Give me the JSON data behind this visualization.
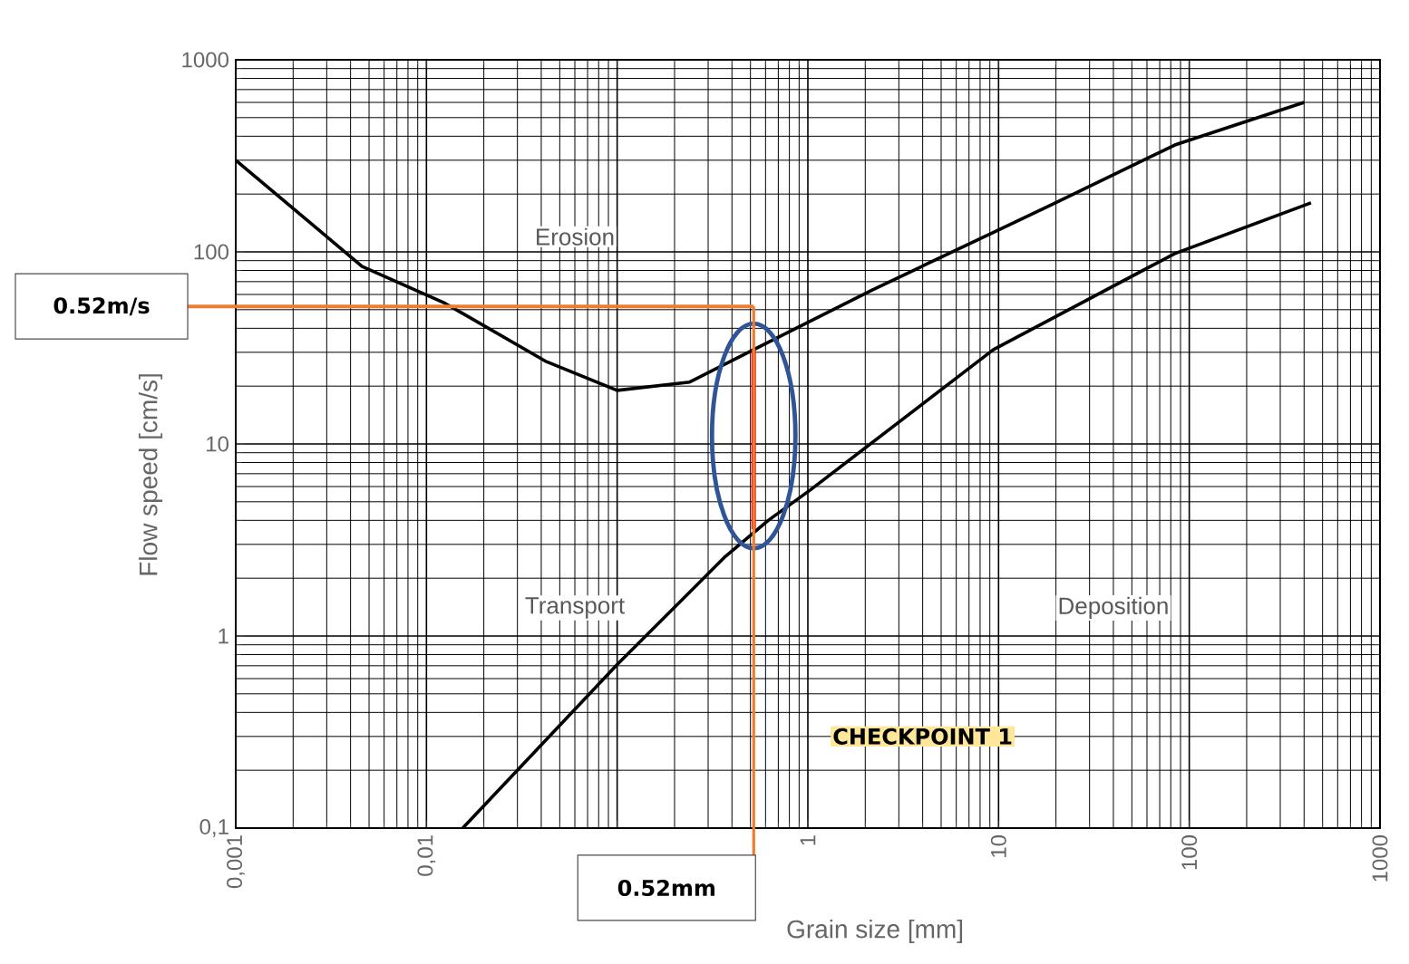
{
  "chart_data": {
    "type": "line",
    "xlabel": "Grain size [mm]",
    "ylabel": "Flow speed [cm/s]",
    "log": "xy",
    "grid": true,
    "marker": "none",
    "line_style": "solid",
    "xlim": [
      0.001,
      1000
    ],
    "ylim": [
      0.1,
      1000
    ],
    "xticks": [
      {
        "value": 0.001,
        "label": "0,001"
      },
      {
        "value": 0.01,
        "label": "0,01"
      },
      {
        "value": 0.1,
        "label": null
      },
      1,
      10,
      100,
      1000
    ],
    "yticks": [
      {
        "value": 0.1,
        "label": "0,1"
      },
      1,
      10,
      100,
      1000
    ],
    "series": [
      {
        "color": "#000000",
        "x": [
          0.001,
          0.0046,
          0.0125,
          0.042,
          0.1,
          0.24,
          0.52,
          2.15,
          19,
          84,
          400
        ],
        "values": [
          300,
          84,
          54,
          27,
          19,
          21,
          31,
          63,
          176,
          360,
          600
        ]
      },
      {
        "color": "#000000",
        "x": [
          0.0155,
          0.1,
          0.37,
          0.62,
          1.04,
          9.4,
          84,
          435
        ],
        "values": [
          0.1,
          0.71,
          2.6,
          4.0,
          5.8,
          31,
          98,
          180
        ]
      },
      {
        "color": "#ff0000",
        "x": [
          0.52,
          0.52
        ],
        "values": [
          3.6,
          31
        ]
      }
    ],
    "ref_lines": [
      {
        "axis": "y",
        "value": 52,
        "label": "0.52m/s",
        "color": "#ed7d31"
      },
      {
        "axis": "x",
        "value": 0.52,
        "label": "0.52mm",
        "color": "#ed7d31"
      }
    ],
    "annotations": [
      "Erosion",
      "Transport",
      "Deposition",
      "CHECKPOINT 1"
    ]
  }
}
